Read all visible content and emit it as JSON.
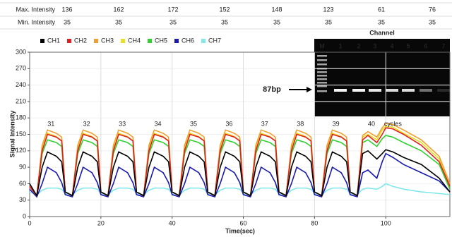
{
  "table": {
    "rows": [
      {
        "label": "Max. Intensity",
        "values": [
          136,
          162,
          172,
          152,
          148,
          123,
          61,
          76
        ]
      },
      {
        "label": "Min. Intensity",
        "values": [
          35,
          35,
          35,
          35,
          35,
          35,
          35,
          35
        ]
      }
    ]
  },
  "gel": {
    "title": "Channel",
    "lanes": [
      "M",
      "1",
      "2",
      "3",
      "4",
      "5",
      "6",
      "7"
    ],
    "marker": "87bp"
  },
  "chart_data": {
    "type": "line",
    "xlabel": "Time(sec)",
    "ylabel": "Signal Intensity",
    "xlim": [
      0,
      118
    ],
    "xticks": [
      0,
      20,
      40,
      60,
      80,
      100
    ],
    "ylim": [
      0,
      300
    ],
    "yticks": [
      0,
      30,
      60,
      90,
      120,
      150,
      180,
      210,
      240,
      270,
      300
    ],
    "grid": true,
    "cycle_labels": [
      "31",
      "32",
      "33",
      "34",
      "35",
      "36",
      "37",
      "38",
      "39",
      "40"
    ],
    "cycle_unit": "cycles",
    "x": [
      0,
      2,
      3.5,
      5,
      7.5,
      9,
      10,
      12,
      13.5,
      15,
      17.5,
      19,
      20,
      22,
      23.5,
      25,
      27.5,
      29,
      30,
      32,
      33.5,
      35,
      37.5,
      39,
      40,
      42,
      43.5,
      45,
      47.5,
      49,
      50,
      52,
      53.5,
      55,
      57.5,
      59,
      60,
      62,
      63.5,
      65,
      67.5,
      69,
      70,
      72,
      73.5,
      75,
      77.5,
      79,
      80,
      82,
      83.5,
      85,
      87.5,
      89,
      90,
      92,
      93.5,
      95,
      97.5,
      99,
      100,
      102,
      105,
      110,
      115,
      118
    ],
    "series": [
      {
        "name": "CH1",
        "color": "#000000",
        "values": [
          60,
          38,
          90,
          118,
          110,
          100,
          45,
          38,
          90,
          118,
          110,
          100,
          45,
          38,
          90,
          118,
          110,
          100,
          45,
          38,
          90,
          118,
          110,
          100,
          45,
          38,
          90,
          118,
          110,
          100,
          45,
          38,
          90,
          118,
          110,
          100,
          45,
          38,
          90,
          118,
          110,
          100,
          45,
          38,
          90,
          118,
          110,
          100,
          45,
          38,
          90,
          118,
          110,
          100,
          45,
          38,
          115,
          120,
          105,
          115,
          122,
          118,
          108,
          95,
          70,
          45
        ]
      },
      {
        "name": "CH2",
        "color": "#e02020",
        "values": [
          55,
          38,
          120,
          150,
          145,
          138,
          45,
          38,
          120,
          150,
          145,
          138,
          45,
          38,
          120,
          150,
          145,
          138,
          45,
          38,
          120,
          150,
          145,
          138,
          45,
          38,
          120,
          150,
          145,
          138,
          45,
          38,
          120,
          150,
          145,
          138,
          45,
          38,
          120,
          150,
          145,
          138,
          45,
          38,
          120,
          150,
          145,
          138,
          45,
          38,
          120,
          150,
          145,
          138,
          45,
          38,
          140,
          148,
          135,
          150,
          162,
          160,
          150,
          130,
          100,
          55
        ]
      },
      {
        "name": "CH3",
        "color": "#f0a030",
        "values": [
          55,
          38,
          130,
          158,
          152,
          145,
          45,
          38,
          130,
          158,
          152,
          145,
          45,
          38,
          130,
          158,
          152,
          145,
          45,
          38,
          130,
          158,
          152,
          145,
          45,
          38,
          130,
          158,
          152,
          145,
          45,
          38,
          130,
          158,
          152,
          145,
          45,
          38,
          130,
          158,
          152,
          145,
          45,
          38,
          130,
          158,
          152,
          145,
          45,
          38,
          130,
          158,
          152,
          145,
          45,
          38,
          148,
          155,
          145,
          162,
          170,
          168,
          158,
          140,
          110,
          60
        ]
      },
      {
        "name": "CH4",
        "color": "#e8e020",
        "values": [
          55,
          38,
          125,
          152,
          146,
          138,
          45,
          38,
          125,
          152,
          146,
          138,
          45,
          38,
          125,
          152,
          146,
          138,
          45,
          38,
          125,
          152,
          146,
          138,
          45,
          38,
          125,
          152,
          146,
          138,
          45,
          38,
          125,
          152,
          146,
          138,
          45,
          38,
          125,
          152,
          146,
          138,
          45,
          38,
          125,
          152,
          146,
          138,
          45,
          38,
          125,
          152,
          146,
          138,
          45,
          38,
          145,
          150,
          140,
          158,
          165,
          163,
          152,
          135,
          105,
          55
        ]
      },
      {
        "name": "CH5",
        "color": "#30d030",
        "values": [
          55,
          38,
          115,
          140,
          135,
          128,
          45,
          38,
          115,
          140,
          135,
          128,
          45,
          38,
          115,
          140,
          135,
          128,
          45,
          38,
          115,
          140,
          135,
          128,
          45,
          38,
          115,
          140,
          135,
          128,
          45,
          38,
          115,
          140,
          135,
          128,
          45,
          38,
          115,
          140,
          135,
          128,
          45,
          38,
          115,
          140,
          135,
          128,
          45,
          38,
          115,
          140,
          135,
          128,
          45,
          38,
          135,
          140,
          128,
          142,
          148,
          145,
          135,
          120,
          95,
          50
        ]
      },
      {
        "name": "CH6",
        "color": "#1a1ab0",
        "values": [
          50,
          36,
          60,
          90,
          80,
          62,
          40,
          36,
          60,
          90,
          80,
          62,
          40,
          36,
          60,
          90,
          80,
          62,
          40,
          36,
          60,
          90,
          80,
          62,
          40,
          36,
          60,
          90,
          80,
          62,
          40,
          36,
          60,
          90,
          80,
          62,
          40,
          36,
          60,
          90,
          80,
          62,
          40,
          36,
          60,
          90,
          80,
          62,
          40,
          36,
          60,
          90,
          80,
          62,
          40,
          36,
          80,
          85,
          70,
          100,
          115,
          108,
          95,
          80,
          65,
          45
        ]
      },
      {
        "name": "CH7",
        "color": "#80e8e8",
        "values": [
          45,
          40,
          48,
          52,
          52,
          50,
          42,
          40,
          48,
          52,
          52,
          50,
          42,
          40,
          48,
          52,
          52,
          50,
          42,
          40,
          48,
          52,
          52,
          50,
          42,
          40,
          48,
          52,
          52,
          50,
          42,
          40,
          48,
          52,
          52,
          50,
          42,
          40,
          48,
          52,
          52,
          50,
          42,
          40,
          48,
          52,
          52,
          50,
          42,
          40,
          48,
          52,
          52,
          50,
          42,
          40,
          50,
          52,
          50,
          55,
          60,
          55,
          50,
          45,
          42,
          40
        ]
      }
    ]
  }
}
